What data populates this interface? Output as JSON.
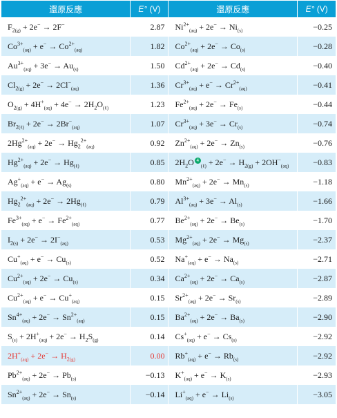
{
  "headers": {
    "reaction_left": "還原反應",
    "e_left": "(V)",
    "reaction_right": "還原反應",
    "e_right": "(V)",
    "e_symbol": "E°"
  },
  "note_marker": "4",
  "rows": [
    {
      "left": {
        "html": "F<sub>2</sub><sub class=\"phase\">(g)</sub> + 2e<sup>−</sup> → 2F<sup>−</sup>",
        "text": "F2(g) + 2e− → 2F−",
        "e": "2.87"
      },
      "right": {
        "html": "Ni<sup>2+</sup><sub class=\"phase\">(aq)</sub> + 2e<sup>−</sup> → Ni<sub class=\"phase\">(s)</sub>",
        "text": "Ni2+(aq) + 2e− → Ni(s)",
        "e": "−0.25"
      }
    },
    {
      "left": {
        "html": "Co<sup>3+</sup><sub class=\"phase\">(aq)</sub> + e<sup>−</sup> → Co<sup>2+</sup><sub class=\"phase\">(aq)</sub>",
        "text": "Co3+(aq) + e− → Co2+(aq)",
        "e": "1.82"
      },
      "right": {
        "html": "Co<sup>2+</sup><sub class=\"phase\">(aq)</sub> + 2e<sup>−</sup> → Co<sub class=\"phase\">(s)</sub>",
        "text": "Co2+(aq) + 2e− → Co(s)",
        "e": "−0.28"
      }
    },
    {
      "left": {
        "html": "Au<sup>3+</sup><sub class=\"phase\">(aq)</sub> + 3e<sup>−</sup> → Au<sub class=\"phase\">(s)</sub>",
        "text": "Au3+(aq) + 3e− → Au(s)",
        "e": "1.50"
      },
      "right": {
        "html": "Cd<sup>2+</sup><sub class=\"phase\">(aq)</sub> + 2e<sup>−</sup> → Cd<sub class=\"phase\">(s)</sub>",
        "text": "Cd2+(aq) + 2e− → Cd(s)",
        "e": "−0.40"
      }
    },
    {
      "left": {
        "html": "Cl<sub>2</sub><sub class=\"phase\">(g)</sub> + 2e<sup>−</sup> → 2Cl<sup>−</sup><sub class=\"phase\">(aq)</sub>",
        "text": "Cl2(g) + 2e− → 2Cl−(aq)",
        "e": "1.36"
      },
      "right": {
        "html": "Cr<sup>3+</sup><sub class=\"phase\">(aq)</sub> + e<sup>−</sup> → Cr<sup>2+</sup><sub class=\"phase\">(aq)</sub>",
        "text": "Cr3+(aq) + e− → Cr2+(aq)",
        "e": "−0.41"
      }
    },
    {
      "left": {
        "html": "O<sub>2</sub><sub class=\"phase\">(g)</sub> + 4H<sup>+</sup><sub class=\"phase\">(aq)</sub> + 4e<sup>−</sup> → 2H<sub>2</sub>O<sub class=\"phase\">(ℓ)</sub>",
        "text": "O2(g) + 4H+(aq) + 4e− → 2H2O(ℓ)",
        "e": "1.23"
      },
      "right": {
        "html": "Fe<sup>2+</sup><sub class=\"phase\">(aq)</sub> + 2e<sup>−</sup> → Fe<sub class=\"phase\">(s)</sub>",
        "text": "Fe2+(aq) + 2e− → Fe(s)",
        "e": "−0.44"
      }
    },
    {
      "left": {
        "html": "Br<sub>2</sub><sub class=\"phase\">(ℓ)</sub> + 2e<sup>−</sup> → 2Br<sup>−</sup><sub class=\"phase\">(aq)</sub>",
        "text": "Br2(ℓ) + 2e− → 2Br−(aq)",
        "e": "1.07"
      },
      "right": {
        "html": "Cr<sup>3+</sup><sub class=\"phase\">(aq)</sub> + 3e<sup>−</sup> → Cr<sub class=\"phase\">(s)</sub>",
        "text": "Cr3+(aq) + 3e− → Cr(s)",
        "e": "−0.74"
      }
    },
    {
      "left": {
        "html": "2Hg<sup>2+</sup><sub class=\"phase\">(aq)</sub> + 2e<sup>−</sup> → Hg<sub>2</sub><sup>2+</sup><sub class=\"phase\">(aq)</sub>",
        "text": "2Hg2+(aq) + 2e− → Hg22+(aq)",
        "e": "0.92"
      },
      "right": {
        "html": "Zn<sup>2+</sup><sub class=\"phase\">(aq)</sub> + 2e<sup>−</sup> → Zn<sub class=\"phase\">(s)</sub>",
        "text": "Zn2+(aq) + 2e− → Zn(s)",
        "e": "−0.76"
      }
    },
    {
      "left": {
        "html": "Hg<sup>2+</sup><sub class=\"phase\">(aq)</sub> + 2e<sup>−</sup> → Hg<sub class=\"phase\">(ℓ)</sub>",
        "text": "Hg2+(aq) + 2e− → Hg(ℓ)",
        "e": "0.85"
      },
      "right": {
        "html": "2H<sub>2</sub>O<span class=\"note\">4</span><sub class=\"phase\">(ℓ)</sub> + 2e<sup>−</sup> → H<sub>2</sub><sub class=\"phase\">(g)</sub> + 2OH<sup>−</sup><sub class=\"phase\">(aq)</sub>",
        "text": "2H2O(ℓ) + 2e− → H2(g) + 2OH−(aq)",
        "e": "−0.83"
      }
    },
    {
      "left": {
        "html": "Ag<sup>+</sup><sub class=\"phase\">(aq)</sub> + e<sup>−</sup> → Ag<sub class=\"phase\">(s)</sub>",
        "text": "Ag+(aq) + e− → Ag(s)",
        "e": "0.80"
      },
      "right": {
        "html": "Mn<sup>2+</sup><sub class=\"phase\">(aq)</sub> + 2e<sup>−</sup> → Mn<sub class=\"phase\">(s)</sub>",
        "text": "Mn2+(aq) + 2e− → Mn(s)",
        "e": "−1.18"
      }
    },
    {
      "left": {
        "html": "Hg<sub>2</sub><sup>2+</sup><sub class=\"phase\">(aq)</sub> + 2e<sup>−</sup> → 2Hg<sub class=\"phase\">(ℓ)</sub>",
        "text": "Hg22+(aq) + 2e− → 2Hg(ℓ)",
        "e": "0.79"
      },
      "right": {
        "html": "Al<sup>3+</sup><sub class=\"phase\">(aq)</sub> + 3e<sup>−</sup> → Al<sub class=\"phase\">(s)</sub>",
        "text": "Al3+(aq) + 3e− → Al(s)",
        "e": "−1.66"
      }
    },
    {
      "left": {
        "html": "Fe<sup>3+</sup><sub class=\"phase\">(aq)</sub> + e<sup>−</sup> → Fe<sup>2+</sup><sub class=\"phase\">(aq)</sub>",
        "text": "Fe3+(aq) + e− → Fe2+(aq)",
        "e": "0.77"
      },
      "right": {
        "html": "Be<sup>2+</sup><sub class=\"phase\">(aq)</sub> + 2e<sup>−</sup> → Be<sub class=\"phase\">(s)</sub>",
        "text": "Be2+(aq) + 2e− → Be(s)",
        "e": "−1.70"
      }
    },
    {
      "left": {
        "html": "I<sub>2</sub><sub class=\"phase\">(s)</sub> + 2e<sup>−</sup> → 2I<sup>−</sup><sub class=\"phase\">(aq)</sub>",
        "text": "I2(s) + 2e− → 2I−(aq)",
        "e": "0.53"
      },
      "right": {
        "html": "Mg<sup>2+</sup><sub class=\"phase\">(aq)</sub> + 2e<sup>−</sup> → Mg<sub class=\"phase\">(s)</sub>",
        "text": "Mg2+(aq) + 2e− → Mg(s)",
        "e": "−2.37"
      }
    },
    {
      "left": {
        "html": "Cu<sup>+</sup><sub class=\"phase\">(aq)</sub> + e<sup>−</sup> → Cu<sub class=\"phase\">(s)</sub>",
        "text": "Cu+(aq) + e− → Cu(s)",
        "e": "0.52"
      },
      "right": {
        "html": "Na<sup>+</sup><sub class=\"phase\">(aq)</sub> + e<sup>−</sup> → Na<sub class=\"phase\">(s)</sub>",
        "text": "Na+(aq) + e− → Na(s)",
        "e": "−2.71"
      }
    },
    {
      "left": {
        "html": "Cu<sup>2+</sup><sub class=\"phase\">(aq)</sub> + 2e<sup>−</sup> → Cu<sub class=\"phase\">(s)</sub>",
        "text": "Cu2+(aq) + 2e− → Cu(s)",
        "e": "0.34"
      },
      "right": {
        "html": "Ca<sup>2+</sup><sub class=\"phase\">(aq)</sub> + 2e<sup>−</sup> → Ca<sub class=\"phase\">(s)</sub>",
        "text": "Ca2+(aq) + 2e− → Ca(s)",
        "e": "−2.87"
      }
    },
    {
      "left": {
        "html": "Cu<sup>2+</sup><sub class=\"phase\">(aq)</sub> + e<sup>−</sup> → Cu<sup>+</sup><sub class=\"phase\">(aq)</sub>",
        "text": "Cu2+(aq) + e− → Cu+(aq)",
        "e": "0.15"
      },
      "right": {
        "html": "Sr<sup>2+</sup><sub class=\"phase\">(aq)</sub> + 2e<sup>−</sup> → Sr<sub class=\"phase\">(s)</sub>",
        "text": "Sr2+(aq) + 2e− → Sr(s)",
        "e": "−2.89"
      }
    },
    {
      "left": {
        "html": "Sn<sup>4+</sup><sub class=\"phase\">(aq)</sub> + 2e<sup>−</sup> → Sn<sup>2+</sup><sub class=\"phase\">(aq)</sub>",
        "text": "Sn4+(aq) + 2e− → Sn2+(aq)",
        "e": "0.15"
      },
      "right": {
        "html": "Ba<sup>2+</sup><sub class=\"phase\">(aq)</sub> + 2e<sup>−</sup> → Ba<sub class=\"phase\">(s)</sub>",
        "text": "Ba2+(aq) + 2e− → Ba(s)",
        "e": "−2.90"
      }
    },
    {
      "left": {
        "html": "S<sub class=\"phase\">(s)</sub> + 2H<sup>+</sup><sub class=\"phase\">(aq)</sub> + 2e<sup>−</sup> → H<sub>2</sub>S<sub class=\"phase\">(g)</sub>",
        "text": "S(s) + 2H+(aq) + 2e− → H2S(g)",
        "e": "0.14"
      },
      "right": {
        "html": "Cs<sup>+</sup><sub class=\"phase\">(aq)</sub> + e<sup>−</sup> → Cs<sub class=\"phase\">(s)</sub>",
        "text": "Cs+(aq) + e− → Cs(s)",
        "e": "−2.92"
      }
    },
    {
      "left": {
        "html": "2H<sup>+</sup><sub class=\"phase\">(aq)</sub> + 2e<sup>−</sup> → H<sub>2</sub><sub class=\"phase\">(g)</sub>",
        "text": "2H+(aq) + 2e− → H2(g)",
        "e": "0.00",
        "highlight": true
      },
      "right": {
        "html": "Rb<sup>+</sup><sub class=\"phase\">(aq)</sub> + e<sup>−</sup> → Rb<sub class=\"phase\">(s)</sub>",
        "text": "Rb+(aq) + e− → Rb(s)",
        "e": "−2.92"
      }
    },
    {
      "left": {
        "html": "Pb<sup>2+</sup><sub class=\"phase\">(aq)</sub> + 2e<sup>−</sup> → Pb<sub class=\"phase\">(s)</sub>",
        "text": "Pb2+(aq) + 2e− → Pb(s)",
        "e": "−0.13"
      },
      "right": {
        "html": "K<sup>+</sup><sub class=\"phase\">(aq)</sub> + e<sup>−</sup> → K<sub class=\"phase\">(s)</sub>",
        "text": "K+(aq) + e− → K(s)",
        "e": "−2.93"
      }
    },
    {
      "left": {
        "html": "Sn<sup>2+</sup><sub class=\"phase\">(aq)</sub> + 2e<sup>−</sup> → Sn<sub class=\"phase\">(s)</sub>",
        "text": "Sn2+(aq) + 2e− → Sn(s)",
        "e": "−0.14"
      },
      "right": {
        "html": "Li<sup>+</sup><sub class=\"phase\">(aq)</sub> + e<sup>−</sup> → Li<sub class=\"phase\">(s)</sub>",
        "text": "Li+(aq) + e− → Li(s)",
        "e": "−3.05"
      }
    }
  ]
}
